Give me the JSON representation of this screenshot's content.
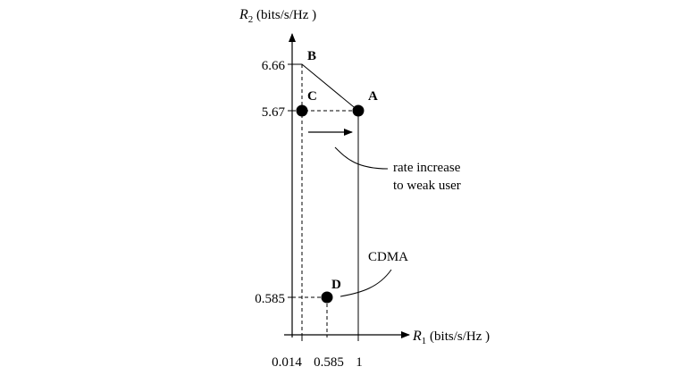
{
  "y_axis": {
    "symbol": "R",
    "subscript": "2",
    "units": " (bits/s/Hz )"
  },
  "x_axis": {
    "symbol": "R",
    "subscript": "1",
    "units": " (bits/s/Hz )"
  },
  "y_ticks": [
    "6.66",
    "5.67",
    "0.585"
  ],
  "x_ticks": [
    "0.014",
    "0.585",
    "1"
  ],
  "points": {
    "A": {
      "label": "A",
      "r1": 1,
      "r2": 5.67
    },
    "B": {
      "label": "B",
      "r1": 0.014,
      "r2": 6.66
    },
    "C": {
      "label": "C",
      "r1": 0.014,
      "r2": 5.67
    },
    "D": {
      "label": "D",
      "r1": 0.585,
      "r2": 0.585
    }
  },
  "annotations": {
    "rate_increase_line1": "rate increase",
    "rate_increase_line2": "to weak user",
    "cdma": "CDMA"
  }
}
